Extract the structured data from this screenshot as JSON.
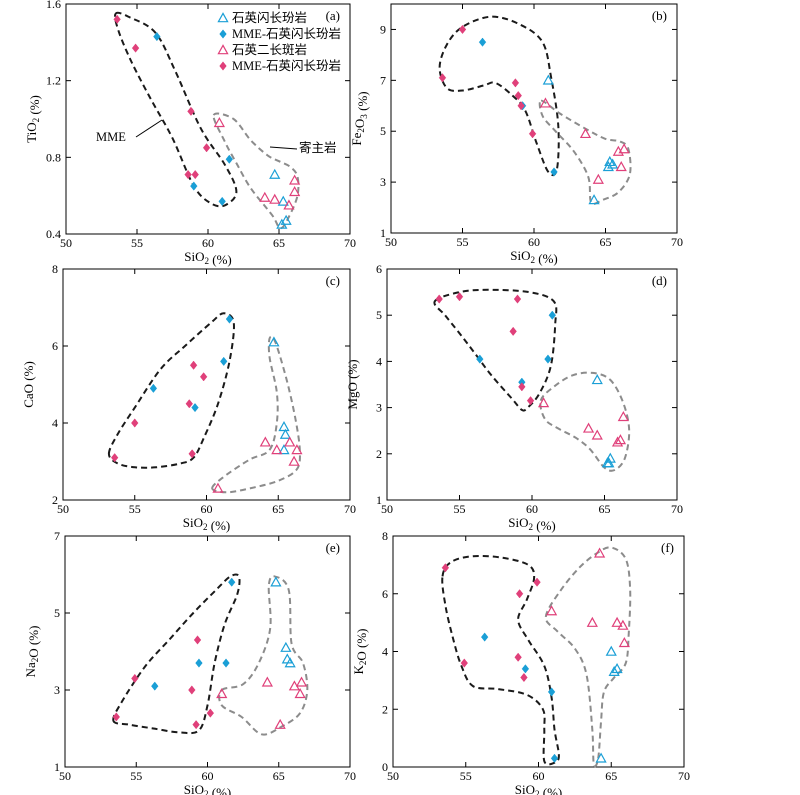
{
  "colors": {
    "qfl_open_triangle": "#1a9fd6",
    "mme_qfl_diamond_blue": "#1a9fd6",
    "qmp_open_triangle": "#e0407a",
    "mme_qfl_diamond_pink": "#e0407a",
    "mme_field": "#1a1a1a",
    "host_field": "#8c8c8c"
  },
  "legend": [
    {
      "label": "石英闪长玢岩",
      "marker": "triangle",
      "color": "#1a9fd6"
    },
    {
      "label": "MME-石英闪长玢岩",
      "marker": "diamond",
      "color": "#1a9fd6"
    },
    {
      "label": "石英二长斑岩",
      "marker": "triangle",
      "color": "#e0407a"
    },
    {
      "label": "MME-石英闪长玢岩",
      "marker": "diamond",
      "color": "#e0407a"
    }
  ],
  "annotations": {
    "mme": "MME",
    "host": "寄主岩"
  },
  "chart_data": [
    {
      "type": "scatter",
      "panel": "(a)",
      "xlabel": "SiO₂ (%)",
      "ylabel": "TiO₂ (%)",
      "xlim": [
        50,
        70
      ],
      "ylim": [
        0.4,
        1.6
      ],
      "xticks": [
        "50",
        "55",
        "60",
        "65",
        "70"
      ],
      "yticks": [
        "0.4",
        "0.8",
        "1.2",
        "1.6"
      ],
      "series": [
        {
          "name": "石英闪长玢岩",
          "points": [
            [
              64.7,
              0.71
            ],
            [
              65.2,
              0.45
            ],
            [
              65.5,
              0.47
            ],
            [
              65.3,
              0.57
            ]
          ]
        },
        {
          "name": "MME-石英闪长玢岩",
          "points": [
            [
              56.4,
              1.43
            ],
            [
              59.0,
              0.65
            ],
            [
              61.0,
              0.57
            ],
            [
              61.5,
              0.79
            ]
          ]
        },
        {
          "name": "石英二长斑岩",
          "points": [
            [
              60.8,
              0.98
            ],
            [
              64.0,
              0.59
            ],
            [
              64.7,
              0.58
            ],
            [
              65.7,
              0.55
            ],
            [
              66.1,
              0.62
            ],
            [
              66.1,
              0.68
            ]
          ]
        },
        {
          "name": "MME-石英闪长玢岩",
          "points": [
            [
              53.6,
              1.52
            ],
            [
              54.9,
              1.37
            ],
            [
              58.8,
              1.04
            ],
            [
              58.6,
              0.71
            ],
            [
              59.1,
              0.71
            ],
            [
              59.9,
              0.85
            ]
          ]
        }
      ]
    },
    {
      "type": "scatter",
      "panel": "(b)",
      "xlabel": "SiO₂ (%)",
      "ylabel": "Fe₂O₃ (%)",
      "xlim": [
        50,
        70
      ],
      "ylim": [
        1,
        10
      ],
      "xticks": [
        "50",
        "55",
        "60",
        "65",
        "70"
      ],
      "yticks": [
        "1",
        "3",
        "5",
        "7",
        "9"
      ],
      "series": [
        {
          "name": "石英闪长玢岩",
          "points": [
            [
              61.0,
              7.0
            ],
            [
              64.2,
              2.3
            ],
            [
              65.2,
              3.6
            ],
            [
              65.3,
              3.8
            ],
            [
              65.5,
              3.7
            ]
          ]
        },
        {
          "name": "MME-石英闪长玢岩",
          "points": [
            [
              56.4,
              8.5
            ],
            [
              59.2,
              6.0
            ],
            [
              61.4,
              3.4
            ]
          ]
        },
        {
          "name": "石英二长斑岩",
          "points": [
            [
              60.8,
              6.1
            ],
            [
              63.6,
              4.9
            ],
            [
              64.5,
              3.1
            ],
            [
              65.9,
              4.2
            ],
            [
              66.1,
              3.6
            ],
            [
              66.3,
              4.3
            ]
          ]
        },
        {
          "name": "MME-石英闪长玢岩",
          "points": [
            [
              53.6,
              7.1
            ],
            [
              55.0,
              9.0
            ],
            [
              58.7,
              6.9
            ],
            [
              58.9,
              6.4
            ],
            [
              59.1,
              6.0
            ],
            [
              59.9,
              4.9
            ]
          ]
        }
      ]
    },
    {
      "type": "scatter",
      "panel": "(c)",
      "xlabel": "SiO₂ (%)",
      "ylabel": "CaO (%)",
      "xlim": [
        50,
        70
      ],
      "ylim": [
        2,
        8
      ],
      "xticks": [
        "50",
        "55",
        "60",
        "65",
        "70"
      ],
      "yticks": [
        "2",
        "4",
        "6",
        "8"
      ],
      "series": [
        {
          "name": "石英闪长玢岩",
          "points": [
            [
              64.7,
              6.1
            ],
            [
              65.4,
              3.9
            ],
            [
              65.5,
              3.7
            ],
            [
              65.4,
              3.3
            ]
          ]
        },
        {
          "name": "MME-石英闪长玢岩",
          "points": [
            [
              56.3,
              4.9
            ],
            [
              59.2,
              4.4
            ],
            [
              61.2,
              5.6
            ],
            [
              61.6,
              6.7
            ]
          ]
        },
        {
          "name": "石英二长斑岩",
          "points": [
            [
              60.8,
              2.3
            ],
            [
              64.1,
              3.5
            ],
            [
              64.9,
              3.3
            ],
            [
              65.8,
              3.5
            ],
            [
              66.1,
              3.0
            ],
            [
              66.3,
              3.3
            ]
          ]
        },
        {
          "name": "MME-石英闪长玢岩",
          "points": [
            [
              53.6,
              3.1
            ],
            [
              55.0,
              4.0
            ],
            [
              58.8,
              4.5
            ],
            [
              59.0,
              3.2
            ],
            [
              59.1,
              5.5
            ],
            [
              59.8,
              5.2
            ]
          ]
        }
      ]
    },
    {
      "type": "scatter",
      "panel": "(d)",
      "xlabel": "SiO₂ (%)",
      "ylabel": "MgO (%)",
      "xlim": [
        50,
        70
      ],
      "ylim": [
        1,
        6
      ],
      "xticks": [
        "50",
        "55",
        "60",
        "65",
        "70"
      ],
      "yticks": [
        "1",
        "2",
        "3",
        "4",
        "5",
        "6"
      ],
      "series": [
        {
          "name": "石英闪长玢岩",
          "points": [
            [
              64.5,
              3.6
            ],
            [
              65.2,
              1.8
            ],
            [
              65.4,
              1.9
            ],
            [
              65.3,
              1.8
            ]
          ]
        },
        {
          "name": "MME-石英闪长玢岩",
          "points": [
            [
              56.4,
              4.05
            ],
            [
              59.3,
              3.55
            ],
            [
              61.1,
              4.05
            ],
            [
              61.4,
              5.0
            ]
          ]
        },
        {
          "name": "石英二长斑岩",
          "points": [
            [
              60.8,
              3.1
            ],
            [
              63.9,
              2.55
            ],
            [
              64.5,
              2.4
            ],
            [
              65.9,
              2.25
            ],
            [
              66.1,
              2.3
            ],
            [
              66.3,
              2.8
            ]
          ]
        },
        {
          "name": "MME-石英闪长玢岩",
          "points": [
            [
              53.6,
              5.35
            ],
            [
              55.0,
              5.4
            ],
            [
              58.7,
              4.65
            ],
            [
              59.0,
              5.35
            ],
            [
              59.3,
              3.45
            ],
            [
              59.9,
              3.15
            ]
          ]
        }
      ]
    },
    {
      "type": "scatter",
      "panel": "(e)",
      "xlabel": "SiO₂ (%)",
      "ylabel": "Na₂O (%)",
      "xlim": [
        50,
        70
      ],
      "ylim": [
        1,
        7
      ],
      "xticks": [
        "50",
        "55",
        "60",
        "65",
        "70"
      ],
      "yticks": [
        "1",
        "3",
        "5",
        "7"
      ],
      "series": [
        {
          "name": "石英闪长玢岩",
          "points": [
            [
              64.8,
              5.8
            ],
            [
              65.5,
              4.1
            ],
            [
              65.6,
              3.8
            ],
            [
              65.8,
              3.7
            ]
          ]
        },
        {
          "name": "MME-石英闪长玢岩",
          "points": [
            [
              56.3,
              3.1
            ],
            [
              59.4,
              3.7
            ],
            [
              61.3,
              3.7
            ],
            [
              61.7,
              5.8
            ]
          ]
        },
        {
          "name": "石英二长斑岩",
          "points": [
            [
              61.0,
              2.9
            ],
            [
              64.2,
              3.2
            ],
            [
              65.1,
              2.1
            ],
            [
              66.1,
              3.1
            ],
            [
              66.5,
              2.9
            ],
            [
              66.6,
              3.2
            ]
          ]
        },
        {
          "name": "MME-石英闪长玢岩",
          "points": [
            [
              53.6,
              2.3
            ],
            [
              54.9,
              3.3
            ],
            [
              58.9,
              3.0
            ],
            [
              59.2,
              2.1
            ],
            [
              59.3,
              4.3
            ],
            [
              60.2,
              2.4
            ]
          ]
        }
      ]
    },
    {
      "type": "scatter",
      "panel": "(f)",
      "xlabel": "SiO₂ (%)",
      "ylabel": "K₂O (%)",
      "xlim": [
        50,
        70
      ],
      "ylim": [
        0,
        8
      ],
      "xticks": [
        "50",
        "55",
        "60",
        "65",
        "70"
      ],
      "yticks": [
        "0",
        "2",
        "4",
        "6",
        "8"
      ],
      "series": [
        {
          "name": "石英闪长玢岩",
          "points": [
            [
              64.3,
              0.3
            ],
            [
              65.0,
              4.0
            ],
            [
              65.2,
              3.3
            ],
            [
              65.4,
              3.4
            ]
          ]
        },
        {
          "name": "MME-石英闪长玢岩",
          "points": [
            [
              56.3,
              4.5
            ],
            [
              59.1,
              3.4
            ],
            [
              60.9,
              2.6
            ],
            [
              61.1,
              0.3
            ]
          ]
        },
        {
          "name": "石英二长斑岩",
          "points": [
            [
              60.9,
              5.4
            ],
            [
              63.7,
              5.0
            ],
            [
              64.2,
              7.4
            ],
            [
              65.4,
              5.0
            ],
            [
              65.9,
              4.3
            ],
            [
              65.8,
              4.9
            ]
          ]
        },
        {
          "name": "MME-石英闪长玢岩",
          "points": [
            [
              53.6,
              6.9
            ],
            [
              54.9,
              3.6
            ],
            [
              58.6,
              3.8
            ],
            [
              58.7,
              6.0
            ],
            [
              59.0,
              3.1
            ],
            [
              59.9,
              6.4
            ]
          ]
        }
      ]
    }
  ]
}
